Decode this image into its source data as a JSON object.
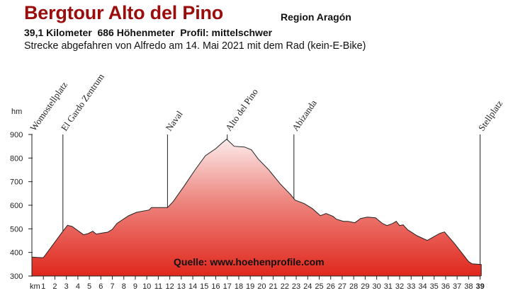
{
  "header": {
    "title": "Bergtour Alto del Pino",
    "region": "Region Aragón",
    "stats": "39,1 Kilometer  686 Höhenmeter  Profil: mittelschwer",
    "description": "Strecke abgefahren von Alfredo am 14. Mai 2021 mit dem Rad (kein-E-Bike)"
  },
  "source_label": "Quelle: www.hoehenprofile.com",
  "colors": {
    "title": "#9b0d0d",
    "fill_top": "#fdf4f4",
    "fill_mid": "#ee8a84",
    "fill_bottom": "#e0271c",
    "outline": "#222222"
  },
  "chart_data": {
    "type": "area",
    "title": "Bergtour Alto del Pino",
    "ylabel": "hm",
    "xlabel": "km",
    "ylim": [
      300,
      900
    ],
    "xlim": [
      0,
      39.1
    ],
    "y_ticks": [
      "900",
      "800",
      "700",
      "600",
      "500",
      "400",
      "300"
    ],
    "x_ticks": [
      "1",
      "2",
      "3",
      "4",
      "5",
      "6",
      "7",
      "8",
      "9",
      "10",
      "11",
      "12",
      "13",
      "14",
      "15",
      "16",
      "17",
      "18",
      "19",
      "20",
      "21",
      "22",
      "23",
      "24",
      "25",
      "26",
      "27",
      "28",
      "29",
      "30",
      "31",
      "32",
      "33",
      "34",
      "35",
      "36",
      "37",
      "38",
      "39"
    ],
    "x_unit_label": "km",
    "grid": false,
    "legend": null,
    "waypoints": [
      {
        "name": "Womostellplatz",
        "km": 0
      },
      {
        "name": "El Gardo Zentrum",
        "km": 2.7
      },
      {
        "name": "Naval",
        "km": 11.8
      },
      {
        "name": "Alto del Pino",
        "km": 17
      },
      {
        "name": "Abizanda",
        "km": 22.8
      },
      {
        "name": "Stellplatz",
        "km": 39
      }
    ],
    "x": [
      0,
      0.7,
      1.0,
      2.7,
      3.1,
      3.5,
      4.5,
      4.9,
      5.3,
      5.6,
      6.2,
      6.6,
      7.0,
      7.4,
      8.4,
      9.1,
      10.2,
      10.4,
      11.1,
      11.8,
      12.3,
      13.3,
      14.2,
      15.1,
      16.0,
      16.5,
      16.95,
      17.6,
      18.5,
      19.1,
      19.7,
      20.6,
      21.6,
      22.5,
      22.9,
      23.7,
      24.4,
      25.1,
      25.6,
      26.2,
      26.5,
      27.1,
      27.5,
      28.1,
      28.6,
      29.2,
      29.9,
      30.5,
      30.9,
      31.4,
      31.7,
      32.0,
      32.3,
      32.7,
      33.5,
      34.4,
      35.5,
      35.9,
      36.8,
      38.0,
      38.3,
      39.1
    ],
    "y": [
      380,
      378,
      378,
      490,
      515,
      510,
      475,
      480,
      490,
      478,
      483,
      486,
      498,
      523,
      555,
      570,
      580,
      590,
      590,
      590,
      616,
      685,
      750,
      810,
      840,
      862,
      880,
      850,
      847,
      835,
      796,
      751,
      691,
      646,
      622,
      607,
      586,
      556,
      565,
      553,
      541,
      532,
      532,
      526,
      544,
      550,
      547,
      523,
      514,
      523,
      532,
      514,
      517,
      496,
      471,
      451,
      481,
      487,
      436,
      361,
      352,
      349
    ]
  }
}
